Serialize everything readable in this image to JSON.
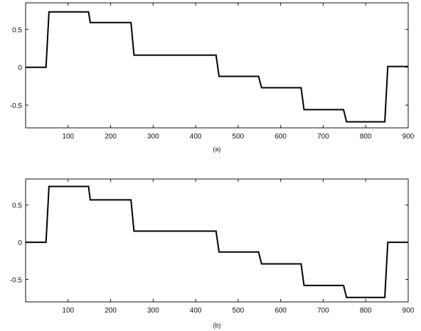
{
  "chart_data": [
    {
      "type": "line",
      "caption": "(a)",
      "xlim": [
        0,
        900
      ],
      "ylim": [
        -0.8,
        0.85
      ],
      "grid": false,
      "x_ticks": [
        100,
        200,
        300,
        400,
        500,
        600,
        700,
        800,
        900
      ],
      "y_ticks": [
        0.5,
        0,
        -0.5
      ],
      "x_tick_labels": [
        "100",
        "200",
        "300",
        "400",
        "500",
        "600",
        "700",
        "800",
        "900"
      ],
      "y_tick_labels": [
        "0.5",
        "0",
        "-0.5"
      ],
      "series": [
        {
          "x": [
            0,
            48,
            55,
            148,
            152,
            248,
            255,
            448,
            455,
            548,
            555,
            648,
            655,
            748,
            755,
            845,
            852,
            900
          ],
          "y": [
            0,
            0,
            0.73,
            0.73,
            0.59,
            0.59,
            0.16,
            0.16,
            -0.12,
            -0.12,
            -0.27,
            -0.27,
            -0.56,
            -0.56,
            -0.72,
            -0.72,
            0.01,
            0.01
          ]
        }
      ]
    },
    {
      "type": "line",
      "caption": "(b)",
      "xlim": [
        0,
        900
      ],
      "ylim": [
        -0.8,
        0.85
      ],
      "grid": false,
      "x_ticks": [
        100,
        200,
        300,
        400,
        500,
        600,
        700,
        800,
        900
      ],
      "y_ticks": [
        0.5,
        0,
        -0.5
      ],
      "x_tick_labels": [
        "100",
        "200",
        "300",
        "400",
        "500",
        "600",
        "700",
        "800",
        "900"
      ],
      "y_tick_labels": [
        "0.5",
        "0",
        "-0.5"
      ],
      "series": [
        {
          "x": [
            0,
            48,
            55,
            148,
            152,
            248,
            255,
            448,
            455,
            548,
            555,
            648,
            655,
            748,
            755,
            845,
            852,
            900
          ],
          "y": [
            0,
            0,
            0.75,
            0.75,
            0.57,
            0.57,
            0.15,
            0.15,
            -0.13,
            -0.13,
            -0.29,
            -0.29,
            -0.58,
            -0.58,
            -0.74,
            -0.74,
            0.0,
            0.0
          ]
        }
      ]
    }
  ]
}
